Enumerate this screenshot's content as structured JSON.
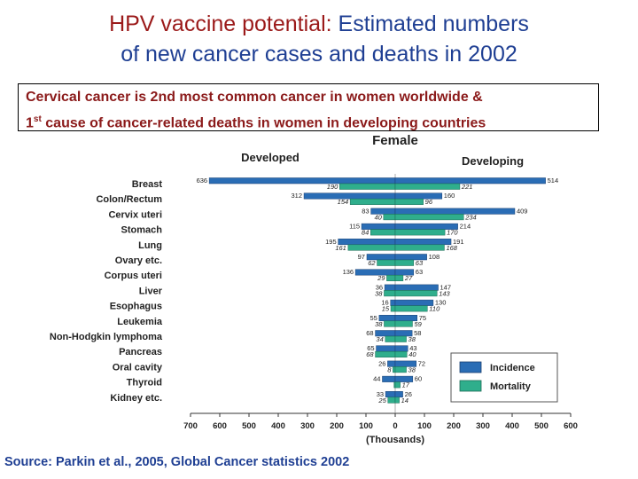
{
  "title": {
    "highlight": "HPV vaccine potential:",
    "rest_line1": "Estimated numbers",
    "line2": "of new cancer cases and deaths in 2002"
  },
  "callout": {
    "line1": "Cervical cancer is 2nd most common cancer in women worldwide &",
    "line2_num": "1",
    "line2_sup": "st",
    "line2_rest": "cause of cancer-related deaths in women in developing countries"
  },
  "source": "Source: Parkin et al., 2005, Global Cancer statistics 2002",
  "chart_data": {
    "type": "bar",
    "title": "Female",
    "left_label": "Developed",
    "right_label": "Developing",
    "xlabel": "(Thousands)",
    "xticks": [
      "700",
      "600",
      "500",
      "400",
      "300",
      "200",
      "100",
      "0",
      "100",
      "200",
      "300",
      "400",
      "500",
      "600"
    ],
    "xlim_left": [
      0,
      700
    ],
    "xlim_right": [
      0,
      600
    ],
    "categories": [
      "Breast",
      "Colon/Rectum",
      "Cervix uteri",
      "Stomach",
      "Lung",
      "Ovary etc.",
      "Corpus uteri",
      "Liver",
      "Esophagus",
      "Leukemia",
      "Non-Hodgkin lymphoma",
      "Pancreas",
      "Oral cavity",
      "Thyroid",
      "Kidney etc."
    ],
    "series": [
      {
        "name": "Incidence",
        "side": "developed",
        "values": [
          636,
          312,
          83,
          115,
          195,
          97,
          136,
          36,
          16,
          55,
          68,
          65,
          26,
          44,
          33
        ],
        "labels": [
          "636",
          "312",
          "83",
          "115",
          "195",
          "97",
          "136",
          "36",
          "16",
          "55",
          "68",
          "65",
          "26",
          "44",
          "33"
        ]
      },
      {
        "name": "Mortality",
        "side": "developed",
        "values": [
          190,
          154,
          40,
          84,
          161,
          62,
          29,
          38,
          15,
          38,
          34,
          68,
          8,
          4,
          25
        ],
        "labels": [
          "190",
          "154",
          "40",
          "84",
          "161",
          "62",
          "29",
          "38",
          "15",
          "38",
          "34",
          "68",
          "8",
          "",
          "25"
        ]
      },
      {
        "name": "Incidence",
        "side": "developing",
        "values": [
          514,
          160,
          409,
          214,
          191,
          108,
          63,
          147,
          130,
          75,
          58,
          43,
          72,
          60,
          26
        ],
        "labels": [
          "514",
          "160",
          "409",
          "214",
          "191",
          "108",
          "63",
          "147",
          "130",
          "75",
          "58",
          "43",
          "72",
          "60",
          "26"
        ]
      },
      {
        "name": "Mortality",
        "side": "developing",
        "values": [
          221,
          96,
          234,
          170,
          168,
          63,
          27,
          143,
          110,
          59,
          38,
          40,
          38,
          17,
          14
        ],
        "labels": [
          "221",
          "96",
          "234",
          "170",
          "168",
          "63",
          "27",
          "143",
          "110",
          "59",
          "38",
          "40",
          "38",
          "17",
          "14"
        ]
      }
    ],
    "legend": {
      "position": "bottom-right",
      "items": [
        "Incidence",
        "Mortality"
      ]
    },
    "colors": {
      "incidence": "#2a6db5",
      "mortality": "#2fae8c"
    }
  }
}
